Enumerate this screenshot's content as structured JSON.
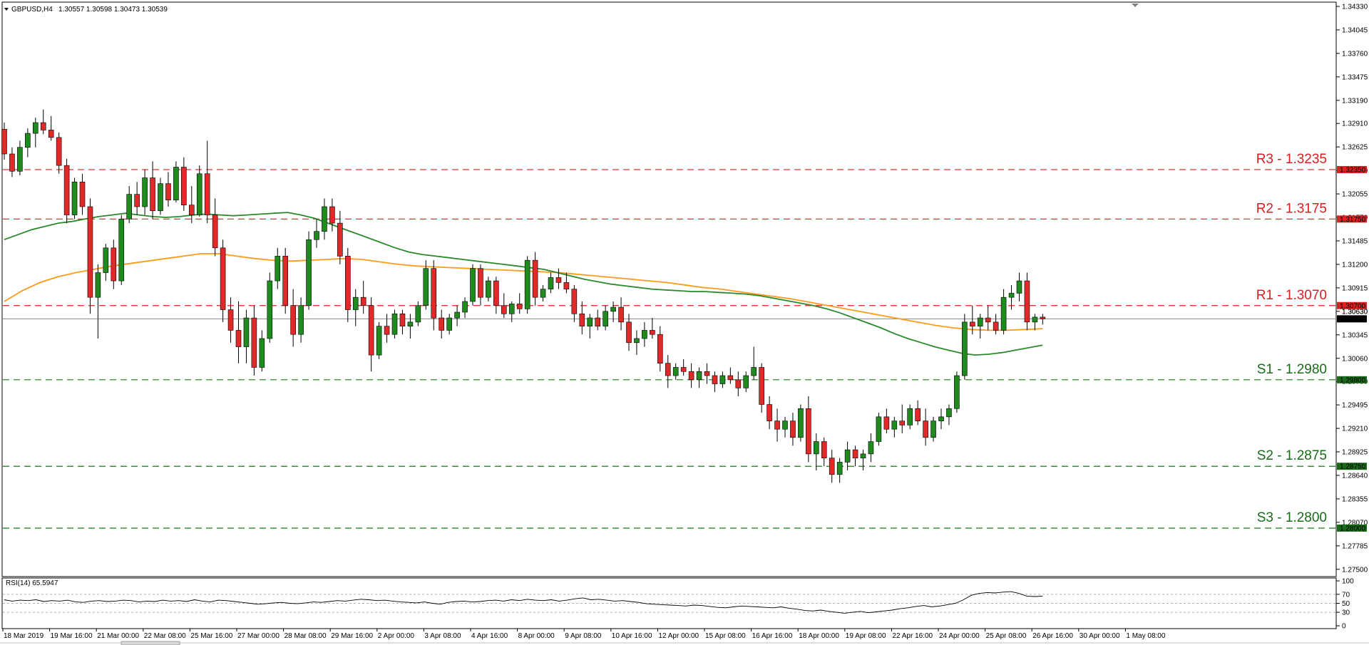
{
  "header": {
    "title": "GBPUSD,H4",
    "ohlc": "1.30557 1.30598 1.30473 1.30539"
  },
  "rsi": {
    "label": "RSI(14) 65.5947",
    "scale": [
      "100",
      "70",
      "50",
      "30",
      "0"
    ],
    "levels": [
      70,
      50,
      30
    ],
    "values": [
      58,
      55,
      57,
      56,
      58,
      54,
      56,
      55,
      57,
      53,
      52,
      55,
      56,
      54,
      55,
      57,
      56,
      53,
      55,
      54,
      57,
      55,
      56,
      54,
      58,
      55,
      53,
      57,
      56,
      54,
      52,
      50,
      48,
      49,
      51,
      52,
      50,
      49,
      51,
      53,
      52,
      54,
      56,
      55,
      57,
      59,
      58,
      56,
      57,
      55,
      53,
      52,
      51,
      53,
      50,
      48,
      52,
      54,
      55,
      53,
      54,
      56,
      57,
      55,
      58,
      56,
      59,
      57,
      56,
      58,
      55,
      57,
      60,
      62,
      58,
      59,
      57,
      55,
      56,
      54,
      52,
      49,
      48,
      47,
      46,
      45,
      44,
      46,
      45,
      43,
      41,
      40,
      42,
      44,
      43,
      42,
      41,
      40,
      42,
      39,
      37,
      34,
      33,
      35,
      32,
      30,
      28,
      30,
      32,
      29,
      31,
      33,
      35,
      38,
      40,
      43,
      45,
      42,
      44,
      47,
      50,
      58,
      68,
      72,
      74,
      73,
      75,
      76,
      72,
      66,
      65,
      66
    ]
  },
  "chart_data": {
    "type": "candlestick",
    "symbol": "GBPUSD",
    "timeframe": "H4",
    "ylim": [
      1.2755,
      1.3433
    ],
    "y_ticks": [
      "1.34330",
      "1.34045",
      "1.33760",
      "1.33475",
      "1.33190",
      "1.32910",
      "1.32625",
      "1.32340",
      "1.32055",
      "1.31770",
      "1.31485",
      "1.31200",
      "1.30915",
      "1.30630",
      "1.30345",
      "1.30060",
      "1.29780",
      "1.29495",
      "1.29210",
      "1.28925",
      "1.28640",
      "1.28355",
      "1.28070",
      "1.27785",
      "1.27500"
    ],
    "x_ticks": [
      "18 Mar 2019",
      "19 Mar 16:00",
      "21 Mar 00:00",
      "22 Mar 08:00",
      "25 Mar 16:00",
      "27 Mar 00:00",
      "28 Mar 08:00",
      "29 Mar 16:00",
      "2 Apr 00:00",
      "3 Apr 08:00",
      "4 Apr 16:00",
      "8 Apr 00:00",
      "9 Apr 08:00",
      "10 Apr 16:00",
      "12 Apr 00:00",
      "15 Apr 08:00",
      "16 Apr 16:00",
      "18 Apr 00:00",
      "19 Apr 08:00",
      "22 Apr 16:00",
      "24 Apr 00:00",
      "25 Apr 08:00",
      "26 Apr 16:00",
      "30 Apr 00:00",
      "1 May 08:00"
    ],
    "levels": [
      {
        "name": "R3",
        "label": "R3 - 1.3235",
        "value": 1.3235,
        "tag": "1.32350",
        "kind": "resistance"
      },
      {
        "name": "R2",
        "label": "R2 - 1.3175",
        "value": 1.3175,
        "tag": "1.31750",
        "kind": "resistance"
      },
      {
        "name": "R1",
        "label": "R1 - 1.3070",
        "value": 1.307,
        "tag": "1.30700",
        "kind": "resistance"
      },
      {
        "name": "S1",
        "label": "S1 - 1.2980",
        "value": 1.298,
        "tag": "1.29800",
        "kind": "support"
      },
      {
        "name": "S2",
        "label": "S2 - 1.2875",
        "value": 1.2875,
        "tag": "1.28750",
        "kind": "support"
      },
      {
        "name": "S3",
        "label": "S3 - 1.2800",
        "value": 1.28,
        "tag": "1.28000",
        "kind": "support"
      }
    ],
    "current_price": {
      "value": 1.30539,
      "tag": "1.30539"
    },
    "ask_tag": "1.30630",
    "ma_fast": [
      1.315,
      1.3156,
      1.3162,
      1.3166,
      1.317,
      1.3172,
      1.3175,
      1.3178,
      1.318,
      1.3182,
      1.318,
      1.3178,
      1.3177,
      1.3178,
      1.318,
      1.3181,
      1.318,
      1.3179,
      1.318,
      1.3181,
      1.3182,
      1.3183,
      1.318,
      1.3176,
      1.317,
      1.3164,
      1.3158,
      1.3152,
      1.3146,
      1.314,
      1.3135,
      1.3132,
      1.313,
      1.3128,
      1.3126,
      1.3124,
      1.3122,
      1.312,
      1.3118,
      1.3116,
      1.3114,
      1.311,
      1.3106,
      1.3102,
      1.3099,
      1.3096,
      1.3094,
      1.3092,
      1.309,
      1.3089,
      1.3088,
      1.3087,
      1.3087,
      1.3086,
      1.3085,
      1.3084,
      1.3082,
      1.3079,
      1.3076,
      1.3073,
      1.307,
      1.3066,
      1.3061,
      1.3055,
      1.3049,
      1.3043,
      1.3036,
      1.303,
      1.3025,
      1.302,
      1.3016,
      1.3012,
      1.301,
      1.3011,
      1.3013,
      1.3016,
      1.3019,
      1.3022
    ],
    "ma_slow": [
      1.3075,
      1.3088,
      1.3098,
      1.3105,
      1.311,
      1.3114,
      1.3118,
      1.3121,
      1.3124,
      1.3127,
      1.313,
      1.3133,
      1.3133,
      1.313,
      1.3127,
      1.3125,
      1.3124,
      1.3125,
      1.3126,
      1.3127,
      1.3126,
      1.3123,
      1.312,
      1.3118,
      1.3117,
      1.3116,
      1.3115,
      1.3114,
      1.3113,
      1.3112,
      1.3111,
      1.311,
      1.3108,
      1.3106,
      1.3104,
      1.3102,
      1.31,
      1.3098,
      1.3095,
      1.3092,
      1.309,
      1.3087,
      1.3084,
      1.3081,
      1.3078,
      1.3074,
      1.307,
      1.3066,
      1.3062,
      1.3058,
      1.3054,
      1.305,
      1.3046,
      1.3043,
      1.3041,
      1.304,
      1.304,
      1.3041,
      1.3042
    ],
    "candles": [
      [
        1.3284,
        1.3292,
        1.3247,
        1.3254
      ],
      [
        1.3254,
        1.3262,
        1.3226,
        1.3233
      ],
      [
        1.3233,
        1.327,
        1.3228,
        1.3262
      ],
      [
        1.3262,
        1.3285,
        1.325,
        1.3279
      ],
      [
        1.3279,
        1.3298,
        1.3262,
        1.3292
      ],
      [
        1.3292,
        1.3308,
        1.3278,
        1.3283
      ],
      [
        1.3283,
        1.33,
        1.327,
        1.3274
      ],
      [
        1.3274,
        1.328,
        1.323,
        1.324
      ],
      [
        1.324,
        1.3248,
        1.317,
        1.318
      ],
      [
        1.318,
        1.3225,
        1.3175,
        1.322
      ],
      [
        1.322,
        1.323,
        1.318,
        1.319
      ],
      [
        1.319,
        1.32,
        1.306,
        1.308
      ],
      [
        1.308,
        1.312,
        1.303,
        1.311
      ],
      [
        1.311,
        1.3145,
        1.31,
        1.314
      ],
      [
        1.314,
        1.315,
        1.309,
        1.31
      ],
      [
        1.31,
        1.318,
        1.3095,
        1.3175
      ],
      [
        1.3175,
        1.3215,
        1.317,
        1.3205
      ],
      [
        1.3205,
        1.322,
        1.318,
        1.319
      ],
      [
        1.319,
        1.3235,
        1.318,
        1.3225
      ],
      [
        1.3225,
        1.3245,
        1.3175,
        1.3185
      ],
      [
        1.3185,
        1.3225,
        1.318,
        1.3218
      ],
      [
        1.3218,
        1.3232,
        1.319,
        1.3198
      ],
      [
        1.3198,
        1.3245,
        1.3195,
        1.3238
      ],
      [
        1.3238,
        1.325,
        1.3185,
        1.3192
      ],
      [
        1.3192,
        1.3215,
        1.317,
        1.318
      ],
      [
        1.318,
        1.324,
        1.3178,
        1.323
      ],
      [
        1.323,
        1.327,
        1.317,
        1.318
      ],
      [
        1.318,
        1.32,
        1.313,
        1.314
      ],
      [
        1.314,
        1.315,
        1.305,
        1.3065
      ],
      [
        1.3065,
        1.308,
        1.3025,
        1.304
      ],
      [
        1.304,
        1.3075,
        1.3,
        1.302
      ],
      [
        1.302,
        1.3065,
        1.3,
        1.3055
      ],
      [
        1.3055,
        1.307,
        1.2985,
        1.2995
      ],
      [
        1.2995,
        1.304,
        1.299,
        1.303
      ],
      [
        1.303,
        1.311,
        1.3025,
        1.31
      ],
      [
        1.31,
        1.314,
        1.309,
        1.313
      ],
      [
        1.313,
        1.314,
        1.306,
        1.307
      ],
      [
        1.307,
        1.309,
        1.302,
        1.3035
      ],
      [
        1.3035,
        1.308,
        1.3025,
        1.307
      ],
      [
        1.307,
        1.316,
        1.3065,
        1.315
      ],
      [
        1.315,
        1.3175,
        1.314,
        1.316
      ],
      [
        1.316,
        1.32,
        1.315,
        1.319
      ],
      [
        1.319,
        1.32,
        1.316,
        1.317
      ],
      [
        1.317,
        1.3185,
        1.312,
        1.313
      ],
      [
        1.313,
        1.314,
        1.305,
        1.3065
      ],
      [
        1.3065,
        1.309,
        1.3045,
        1.308
      ],
      [
        1.308,
        1.31,
        1.306,
        1.307
      ],
      [
        1.307,
        1.308,
        1.299,
        1.301
      ],
      [
        1.301,
        1.305,
        1.3005,
        1.3045
      ],
      [
        1.3045,
        1.306,
        1.3025,
        1.3035
      ],
      [
        1.3035,
        1.3065,
        1.303,
        1.306
      ],
      [
        1.306,
        1.3065,
        1.3035,
        1.3045
      ],
      [
        1.3045,
        1.306,
        1.303,
        1.305
      ],
      [
        1.305,
        1.3075,
        1.3045,
        1.307
      ],
      [
        1.307,
        1.3125,
        1.3065,
        1.3115
      ],
      [
        1.3115,
        1.3125,
        1.304,
        1.3055
      ],
      [
        1.3055,
        1.3065,
        1.303,
        1.304
      ],
      [
        1.304,
        1.306,
        1.3035,
        1.3055
      ],
      [
        1.3055,
        1.307,
        1.3045,
        1.3062
      ],
      [
        1.3062,
        1.308,
        1.3055,
        1.3075
      ],
      [
        1.3075,
        1.312,
        1.307,
        1.3115
      ],
      [
        1.3115,
        1.312,
        1.307,
        1.308
      ],
      [
        1.308,
        1.3105,
        1.3075,
        1.31
      ],
      [
        1.31,
        1.3105,
        1.306,
        1.307
      ],
      [
        1.307,
        1.3085,
        1.3055,
        1.306
      ],
      [
        1.306,
        1.3075,
        1.305,
        1.3072
      ],
      [
        1.3072,
        1.3085,
        1.306,
        1.3066
      ],
      [
        1.3066,
        1.313,
        1.306,
        1.3125
      ],
      [
        1.3125,
        1.3135,
        1.307,
        1.308
      ],
      [
        1.308,
        1.3095,
        1.3075,
        1.309
      ],
      [
        1.309,
        1.311,
        1.3085,
        1.3104
      ],
      [
        1.3104,
        1.3115,
        1.309,
        1.3098
      ],
      [
        1.3098,
        1.311,
        1.3085,
        1.309
      ],
      [
        1.309,
        1.3095,
        1.305,
        1.306
      ],
      [
        1.306,
        1.3075,
        1.3035,
        1.3045
      ],
      [
        1.3045,
        1.306,
        1.303,
        1.3055
      ],
      [
        1.3055,
        1.3065,
        1.304,
        1.3045
      ],
      [
        1.3045,
        1.307,
        1.304,
        1.3063
      ],
      [
        1.3063,
        1.3075,
        1.305,
        1.3068
      ],
      [
        1.3068,
        1.308,
        1.304,
        1.305
      ],
      [
        1.305,
        1.306,
        1.3015,
        1.3025
      ],
      [
        1.3025,
        1.304,
        1.301,
        1.303
      ],
      [
        1.303,
        1.305,
        1.302,
        1.304
      ],
      [
        1.304,
        1.3055,
        1.303,
        1.3035
      ],
      [
        1.3035,
        1.3045,
        1.299,
        1.3
      ],
      [
        1.3,
        1.301,
        1.297,
        1.2985
      ],
      [
        1.2985,
        1.3,
        1.298,
        1.2995
      ],
      [
        1.2995,
        1.3005,
        1.2985,
        1.299
      ],
      [
        1.299,
        1.3,
        1.297,
        1.298
      ],
      [
        1.298,
        1.2995,
        1.297,
        1.299
      ],
      [
        1.299,
        1.3,
        1.2975,
        1.2985
      ],
      [
        1.2985,
        1.299,
        1.2965,
        1.2975
      ],
      [
        1.2975,
        1.299,
        1.297,
        1.2985
      ],
      [
        1.2985,
        1.2995,
        1.2975,
        1.298
      ],
      [
        1.298,
        1.299,
        1.296,
        1.297
      ],
      [
        1.297,
        1.299,
        1.2965,
        1.2985
      ],
      [
        1.2985,
        1.302,
        1.298,
        1.2995
      ],
      [
        1.2995,
        1.3,
        1.294,
        1.295
      ],
      [
        1.295,
        1.296,
        1.292,
        1.293
      ],
      [
        1.293,
        1.2945,
        1.2905,
        1.292
      ],
      [
        1.292,
        1.2935,
        1.291,
        1.293
      ],
      [
        1.293,
        1.294,
        1.29,
        1.291
      ],
      [
        1.291,
        1.295,
        1.2905,
        1.2945
      ],
      [
        1.2945,
        1.296,
        1.288,
        1.289
      ],
      [
        1.289,
        1.2915,
        1.287,
        1.2905
      ],
      [
        1.2905,
        1.291,
        1.2875,
        1.2885
      ],
      [
        1.2885,
        1.2895,
        1.2855,
        1.2865
      ],
      [
        1.2865,
        1.2885,
        1.2855,
        1.288
      ],
      [
        1.288,
        1.2905,
        1.287,
        1.2895
      ],
      [
        1.2895,
        1.29,
        1.2875,
        1.2885
      ],
      [
        1.2885,
        1.2895,
        1.287,
        1.289
      ],
      [
        1.289,
        1.2915,
        1.288,
        1.2905
      ],
      [
        1.2905,
        1.294,
        1.29,
        1.2935
      ],
      [
        1.2935,
        1.2945,
        1.2915,
        1.292
      ],
      [
        1.292,
        1.2935,
        1.291,
        1.293
      ],
      [
        1.293,
        1.295,
        1.2915,
        1.2925
      ],
      [
        1.2925,
        1.295,
        1.292,
        1.2945
      ],
      [
        1.2945,
        1.2955,
        1.2925,
        1.293
      ],
      [
        1.293,
        1.2945,
        1.29,
        1.291
      ],
      [
        1.291,
        1.2935,
        1.2905,
        1.293
      ],
      [
        1.293,
        1.2945,
        1.292,
        1.2935
      ],
      [
        1.2935,
        1.295,
        1.2925,
        1.2945
      ],
      [
        1.2945,
        1.299,
        1.294,
        1.2985
      ],
      [
        1.2985,
        1.306,
        1.298,
        1.305
      ],
      [
        1.305,
        1.307,
        1.3035,
        1.3045
      ],
      [
        1.3045,
        1.306,
        1.303,
        1.3055
      ],
      [
        1.3055,
        1.307,
        1.304,
        1.305
      ],
      [
        1.305,
        1.306,
        1.3035,
        1.304
      ],
      [
        1.304,
        1.309,
        1.3035,
        1.308
      ],
      [
        1.308,
        1.3095,
        1.3065,
        1.3085
      ],
      [
        1.3085,
        1.311,
        1.3075,
        1.31
      ],
      [
        1.31,
        1.311,
        1.304,
        1.305
      ],
      [
        1.305,
        1.306,
        1.304,
        1.3056
      ],
      [
        1.3056,
        1.306,
        1.3047,
        1.3054
      ]
    ]
  }
}
